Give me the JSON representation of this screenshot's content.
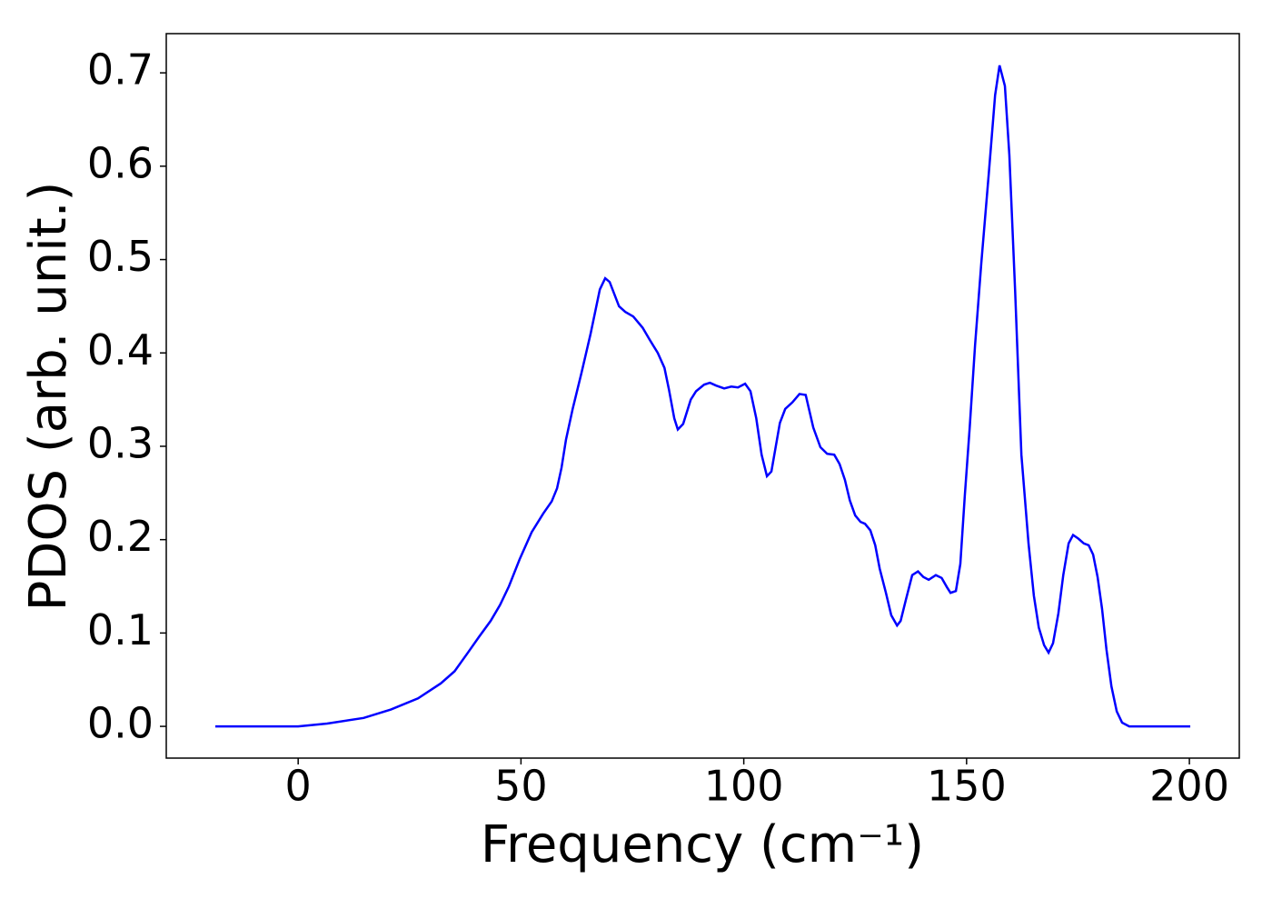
{
  "chart_data": {
    "type": "line",
    "xlabel": "Frequency (cm⁻¹)",
    "ylabel": "PDOS (arb. unit.)",
    "xlim": [
      -29.6,
      211.2
    ],
    "ylim": [
      -0.034,
      0.742
    ],
    "xticks": [
      0,
      50,
      100,
      150,
      200
    ],
    "yticks": [
      {
        "value": 0,
        "label": "0.0"
      },
      0.1,
      0.2,
      0.3,
      0.4,
      0.5,
      0.6,
      0.7
    ],
    "grid": false,
    "series": [
      {
        "color": "#0000ff",
        "x": [
          -18.6,
          0,
          6.5,
          14.7,
          20.8,
          26.9,
          32,
          35.1,
          38.1,
          40.6,
          43.2,
          45.3,
          47.3,
          49.7,
          52.4,
          55,
          56.9,
          58.1,
          59.1,
          60.1,
          61.6,
          63.6,
          65.6,
          67.7,
          68.9,
          69.9,
          72,
          73.4,
          75.2,
          77.3,
          78.9,
          80.7,
          82.2,
          83.2,
          84.4,
          85.2,
          86.4,
          88.1,
          89.3,
          91.1,
          92.4,
          93.8,
          95.6,
          97.2,
          98.7,
          100.3,
          101.5,
          102.8,
          104,
          105.2,
          106.2,
          108.1,
          109.3,
          110.9,
          112.5,
          113.9,
          115.6,
          117.2,
          118.7,
          120.3,
          121.5,
          122.7,
          123.8,
          125,
          126.2,
          127.2,
          128.4,
          129.5,
          130.5,
          131.9,
          133.1,
          134.4,
          135.2,
          136.4,
          137.8,
          139.1,
          140.3,
          141.5,
          143.1,
          144.4,
          145.6,
          146.4,
          147.6,
          148.6,
          149.6,
          150.7,
          151.9,
          153.3,
          155,
          156.4,
          157.4,
          158.6,
          159.6,
          160.9,
          162.3,
          163.9,
          165.1,
          166.2,
          167.4,
          168.4,
          169.4,
          170.6,
          171.7,
          172.9,
          173.9,
          175.1,
          176.3,
          177.4,
          178.4,
          179.4,
          180.4,
          181.4,
          182.5,
          183.7,
          184.9,
          186.5,
          200.2
        ],
        "values": [
          0,
          0,
          0.003,
          0.009,
          0.018,
          0.03,
          0.046,
          0.059,
          0.079,
          0.096,
          0.113,
          0.13,
          0.15,
          0.179,
          0.208,
          0.228,
          0.241,
          0.255,
          0.277,
          0.307,
          0.34,
          0.379,
          0.42,
          0.468,
          0.48,
          0.476,
          0.45,
          0.444,
          0.439,
          0.427,
          0.414,
          0.4,
          0.384,
          0.361,
          0.33,
          0.318,
          0.324,
          0.35,
          0.359,
          0.366,
          0.368,
          0.365,
          0.362,
          0.364,
          0.363,
          0.367,
          0.359,
          0.33,
          0.291,
          0.268,
          0.273,
          0.325,
          0.34,
          0.347,
          0.356,
          0.355,
          0.32,
          0.299,
          0.292,
          0.291,
          0.281,
          0.264,
          0.242,
          0.226,
          0.219,
          0.217,
          0.21,
          0.194,
          0.169,
          0.143,
          0.119,
          0.108,
          0.113,
          0.136,
          0.162,
          0.166,
          0.16,
          0.157,
          0.162,
          0.159,
          0.149,
          0.143,
          0.145,
          0.174,
          0.247,
          0.32,
          0.408,
          0.496,
          0.593,
          0.676,
          0.708,
          0.686,
          0.612,
          0.466,
          0.291,
          0.196,
          0.14,
          0.106,
          0.087,
          0.079,
          0.089,
          0.121,
          0.162,
          0.196,
          0.205,
          0.201,
          0.196,
          0.194,
          0.184,
          0.16,
          0.126,
          0.082,
          0.043,
          0.016,
          0.004,
          0,
          0
        ]
      }
    ]
  }
}
